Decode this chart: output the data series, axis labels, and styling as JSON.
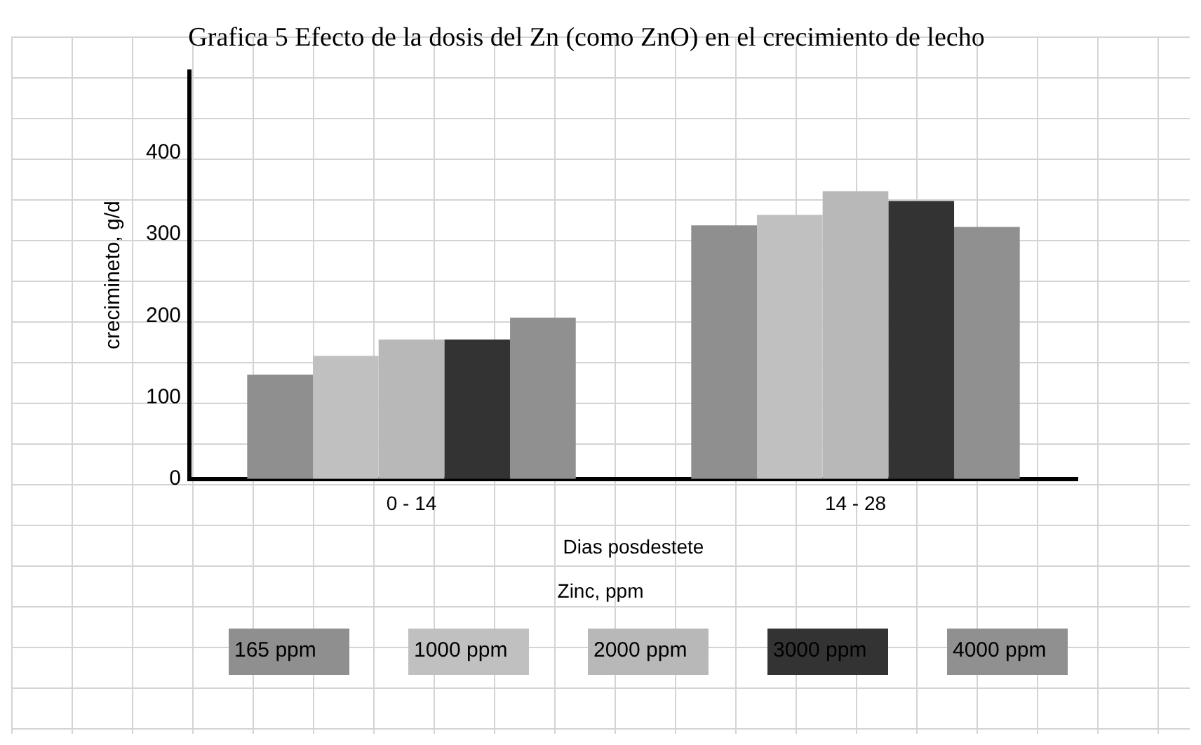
{
  "chart_data": {
    "type": "bar",
    "title": "Grafica 5 Efecto de la dosis del Zn (como ZnO) en el crecimiento de lecho",
    "xlabel": "Dias posdestete",
    "ylabel": "crecimineto, g/d",
    "legend_title": "Zinc, ppm",
    "categories": [
      "0 - 14",
      "14 - 28"
    ],
    "series": [
      {
        "name": "165 ppm",
        "color": "#8f8f8f",
        "values": [
          128,
          311
        ]
      },
      {
        "name": "1000 ppm",
        "color": "#c0c0c0",
        "values": [
          151,
          324
        ]
      },
      {
        "name": "2000 ppm",
        "color": "#b8b8b8",
        "values": [
          171,
          353
        ]
      },
      {
        "name": "3000 ppm",
        "color": "#333333",
        "values": [
          171,
          341
        ]
      },
      {
        "name": "4000 ppm",
        "color": "#909090",
        "values": [
          198,
          309
        ]
      }
    ],
    "ylim": [
      0,
      500
    ],
    "yticks": [
      0,
      100,
      200,
      300,
      400
    ],
    "grid": false,
    "legend": "bottom"
  }
}
